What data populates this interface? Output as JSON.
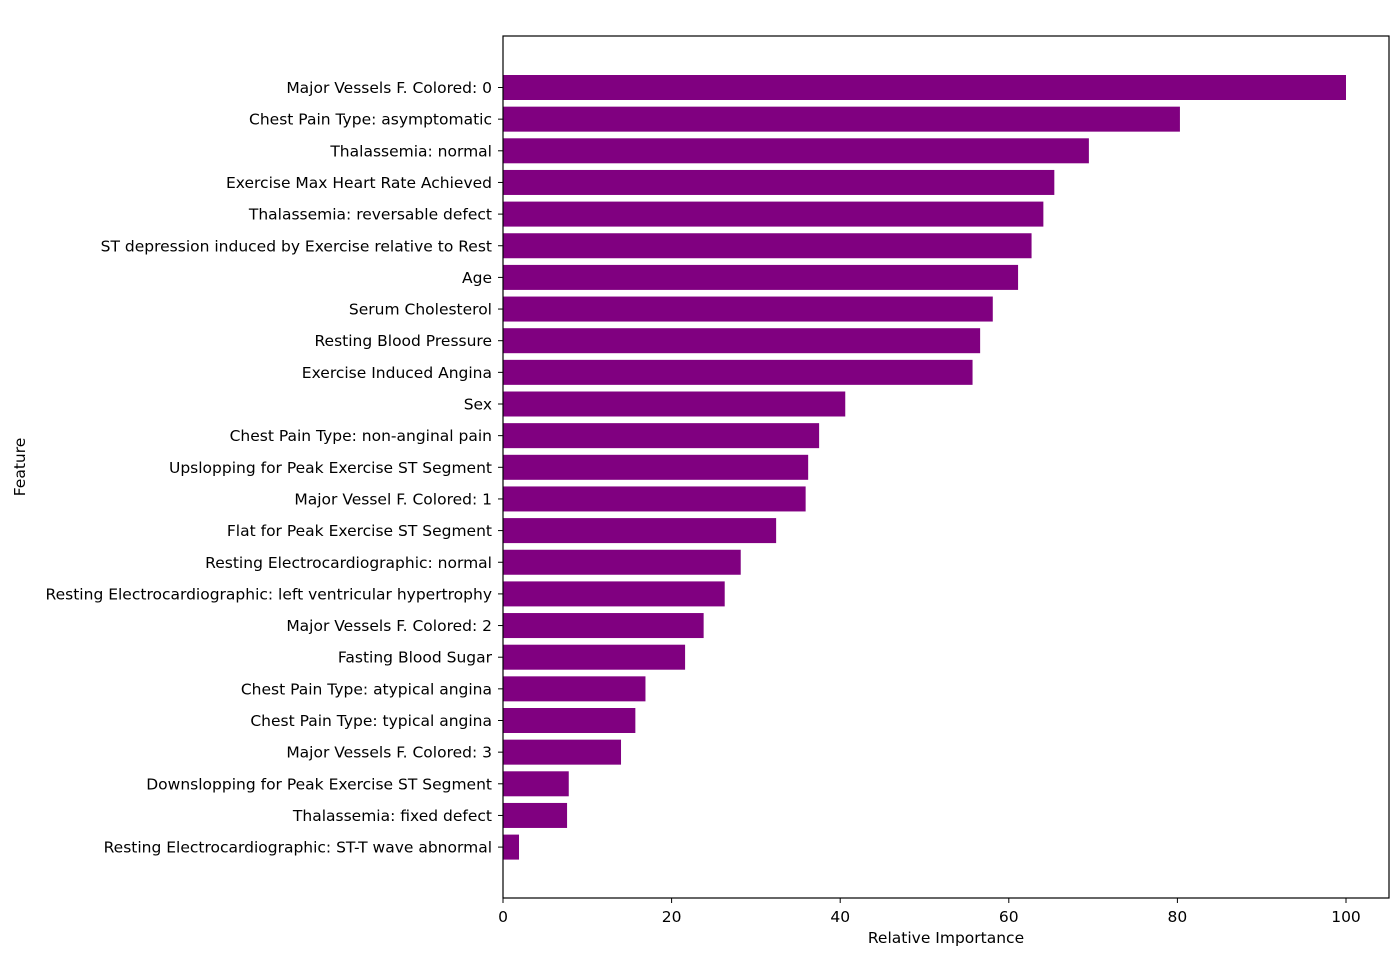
{
  "chart_data": {
    "type": "bar",
    "orientation": "horizontal",
    "title": "",
    "xlabel": "Relative Importance",
    "ylabel": "Feature",
    "xlim": [
      0,
      105
    ],
    "xticks": [
      0,
      20,
      40,
      60,
      80,
      100
    ],
    "grid": false,
    "bar_color": "#800080",
    "categories": [
      "Major Vessels F. Colored: 0",
      "Chest Pain Type: asymptomatic",
      "Thalassemia: normal",
      "Exercise Max Heart Rate Achieved",
      "Thalassemia: reversable defect",
      "ST depression induced by Exercise relative to Rest",
      "Age",
      "Serum Cholesterol",
      "Resting Blood Pressure",
      "Exercise Induced Angina",
      "Sex",
      "Chest Pain Type: non-anginal pain",
      "Upslopping for Peak Exercise ST Segment",
      "Major Vessel F. Colored: 1",
      "Flat for Peak Exercise ST Segment",
      "Resting Electrocardiographic: normal",
      "Resting Electrocardiographic: left ventricular hypertrophy",
      "Major Vessels F. Colored: 2",
      "Fasting Blood Sugar",
      "Chest Pain Type: atypical angina",
      "Chest Pain Type: typical angina",
      "Major Vessels F. Colored: 3",
      "Downslopping for Peak Exercise ST Segment",
      "Thalassemia: fixed defect",
      "Resting Electrocardiographic: ST-T wave abnormal"
    ],
    "values": [
      100,
      80.3,
      69.5,
      65.4,
      64.1,
      62.7,
      61.1,
      58.1,
      56.6,
      55.7,
      40.6,
      37.5,
      36.2,
      35.9,
      32.4,
      28.2,
      26.3,
      23.8,
      21.6,
      16.9,
      15.7,
      14.0,
      7.8,
      7.6,
      1.9
    ]
  }
}
